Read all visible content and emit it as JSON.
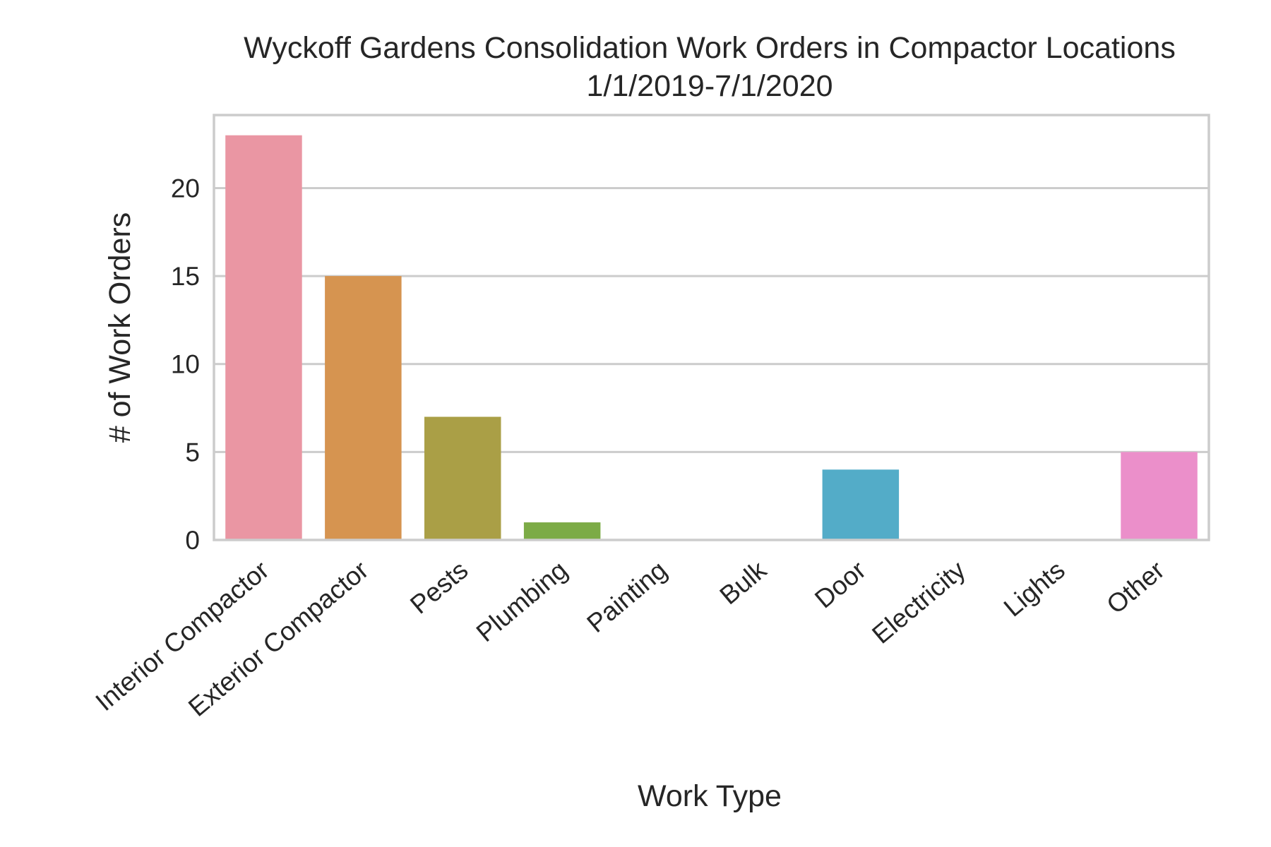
{
  "chart_data": {
    "type": "bar",
    "title": "Wyckoff Gardens Consolidation Work Orders in Compactor Locations",
    "subtitle": "1/1/2019-7/1/2020",
    "xlabel": "Work Type",
    "ylabel": "# of Work Orders",
    "categories": [
      "Interior Compactor",
      "Exterior Compactor",
      "Pests",
      "Plumbing",
      "Painting",
      "Bulk",
      "Door",
      "Electricity",
      "Lights",
      "Other"
    ],
    "values": [
      23,
      15,
      7,
      1,
      0,
      0,
      4,
      0,
      0,
      5
    ],
    "colors": [
      "#ea96a3",
      "#d69450",
      "#aa9f46",
      "#7cab46",
      "#55b062",
      "#56ae93",
      "#53acc8",
      "#8ea9e8",
      "#d69ce9",
      "#eb8fca"
    ],
    "ylim": [
      0,
      24.15
    ],
    "yticks": [
      0,
      5,
      10,
      15,
      20
    ],
    "grid": true,
    "legend": "none"
  }
}
